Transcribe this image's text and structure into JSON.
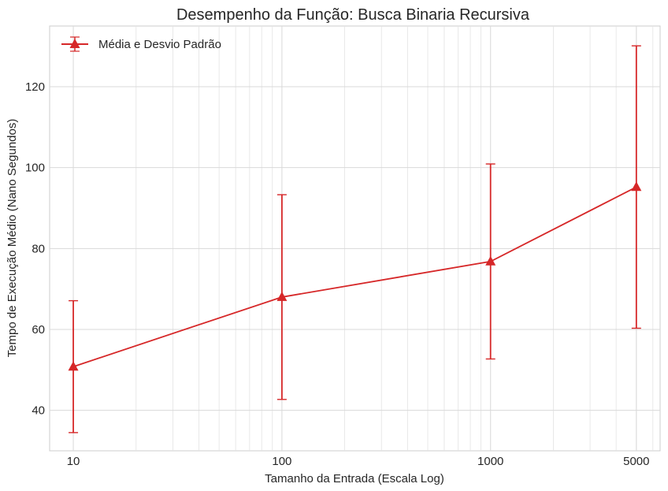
{
  "chart_data": {
    "type": "line",
    "title": "Desempenho da Função: Busca Binaria Recursiva",
    "xlabel": "Tamanho da Entrada (Escala Log)",
    "ylabel": "Tempo de Execução Médio (Nano Segundos)",
    "x_scale": "log",
    "xlim": [
      7.7,
      6500
    ],
    "ylim": [
      30,
      135
    ],
    "x_ticks": [
      10,
      100,
      1000,
      5000
    ],
    "x_tick_labels": [
      "10",
      "100",
      "1000",
      "5000"
    ],
    "y_ticks": [
      40,
      60,
      80,
      100,
      120
    ],
    "y_tick_labels": [
      "40",
      "60",
      "80",
      "100",
      "120"
    ],
    "grid": true,
    "legend_position": "top-left",
    "series": [
      {
        "name": "Média e Desvio Padrão",
        "color": "#d62728",
        "marker": "triangle",
        "x": [
          10,
          100,
          1000,
          5000
        ],
        "y": [
          50.8,
          68.0,
          76.8,
          95.2
        ],
        "error": [
          16.3,
          25.3,
          24.1,
          34.9
        ]
      }
    ]
  }
}
